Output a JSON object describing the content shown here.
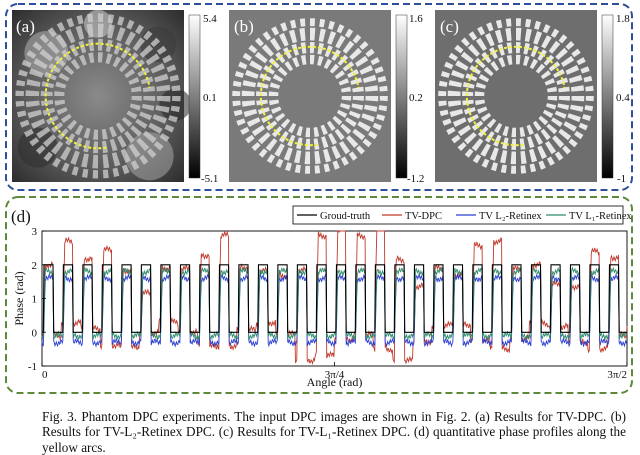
{
  "figure": {
    "panels": [
      {
        "label": "(a)",
        "colorbar_ticks": [
          "5.4",
          "0.1",
          "-5.1"
        ]
      },
      {
        "label": "(b)",
        "colorbar_ticks": [
          "1.6",
          "0.2",
          "-1.2"
        ]
      },
      {
        "label": "(c)",
        "colorbar_ticks": [
          "1.8",
          "0.4",
          "-1"
        ]
      }
    ],
    "plot_label": "(d)",
    "caption": "Fig. 3. Phantom DPC experiments. The input DPC images are shown in Fig. 2. (a) Results for TV-DPC. (b) Results for TV-L₂-Retinex DPC. (c) Results for TV-L₁-Retinex DPC. (d) quantitative phase profiles along the yellow arcs.",
    "colors": {
      "frame_top": "#2f4f9a",
      "frame_bottom": "#5d8a3a",
      "ground_truth": "#000000",
      "tv_dpc": "#c0392b",
      "tv_l2": "#2a3fd0",
      "tv_l1": "#2e8b6e",
      "arc": "#f2f23a"
    }
  },
  "chart_data": {
    "type": "line",
    "xlabel": "Angle (rad)",
    "ylabel": "Phase (rad)",
    "xlim": [
      0,
      4.712
    ],
    "ylim": [
      -1,
      3
    ],
    "xticks": [
      {
        "value": 0,
        "label": "0"
      },
      {
        "value": 2.356,
        "label": "3π/4"
      },
      {
        "value": 4.712,
        "label": "3π/2"
      }
    ],
    "yticks": [
      {
        "value": -1,
        "label": "-1"
      },
      {
        "value": 0,
        "label": "0"
      },
      {
        "value": 1,
        "label": "1"
      },
      {
        "value": 2,
        "label": "2"
      },
      {
        "value": 3,
        "label": "3"
      }
    ],
    "legend_position": "top-right",
    "spokes_along_arc": 30,
    "series": [
      {
        "name": "Groud-truth",
        "high": 2.0,
        "low": 0.0,
        "color_key": "ground_truth"
      },
      {
        "name": "TV-DPC",
        "high": 2.0,
        "low": 0.1,
        "color_key": "tv_dpc"
      },
      {
        "name": "TV L₂-Retinex",
        "high": 1.6,
        "low": -0.3,
        "color_key": "tv_l2"
      },
      {
        "name": "TV L₁-Retinex",
        "high": 1.8,
        "low": -0.1,
        "color_key": "tv_l1"
      }
    ]
  }
}
